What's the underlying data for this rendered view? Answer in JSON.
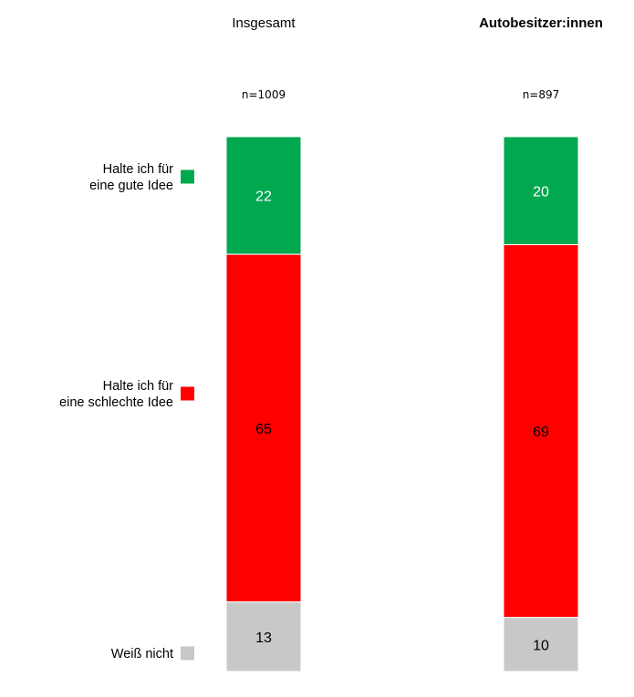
{
  "chart_data": {
    "type": "bar",
    "stacked": true,
    "orientation": "vertical",
    "unit": "%",
    "columns": [
      {
        "title": "Insgesamt",
        "title_bold": false,
        "n_label": "n=1009"
      },
      {
        "title": "Autobesitzer:innen",
        "title_bold": true,
        "n_label": "n=897"
      }
    ],
    "series": [
      {
        "name_lines": [
          "Halte ich für",
          "eine gute Idee"
        ],
        "color": "#00a850",
        "label_color": "#ffffff",
        "values": [
          22,
          20
        ]
      },
      {
        "name_lines": [
          "Halte ich für",
          "eine schlechte Idee"
        ],
        "color": "#ff0000",
        "label_color": "#000000",
        "values": [
          65,
          69
        ]
      },
      {
        "name_lines": [
          "Weiß nicht"
        ],
        "color": "#c8c8c8",
        "label_color": "#000000",
        "values": [
          13,
          10
        ]
      }
    ],
    "legend_position": "left",
    "grid": false
  }
}
